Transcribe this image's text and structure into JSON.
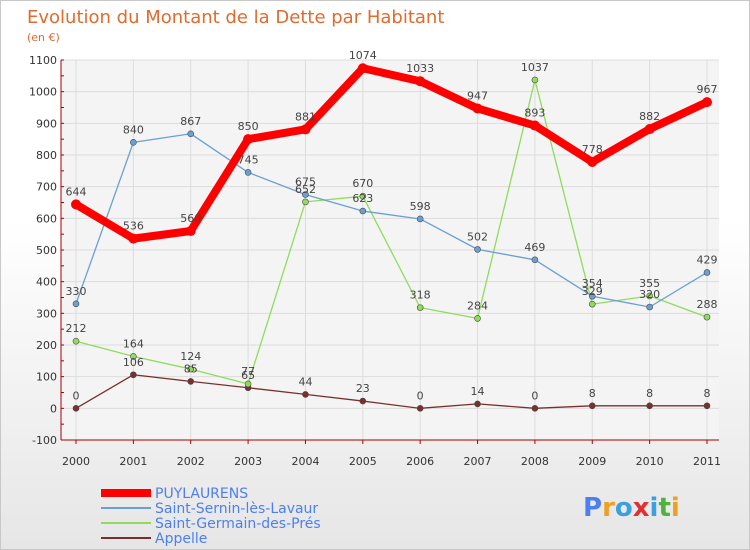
{
  "chart_data": {
    "type": "line",
    "title": "Evolution du Montant de la Dette par Habitant",
    "subtitle": "(en €)",
    "x": [
      "2000",
      "2001",
      "2002",
      "2003",
      "2004",
      "2005",
      "2006",
      "2007",
      "2008",
      "2009",
      "2010",
      "2011"
    ],
    "ylim": [
      -100,
      1100
    ],
    "yticks": [
      "-100",
      "0",
      "100",
      "200",
      "300",
      "400",
      "500",
      "600",
      "700",
      "800",
      "900",
      "1000",
      "1100"
    ],
    "grid": true,
    "legend_position": "bottom-left",
    "series": [
      {
        "name": "PUYLAURENS",
        "color": "#ff0000",
        "values": [
          644,
          536,
          560,
          850,
          881,
          1074,
          1033,
          947,
          893,
          778,
          882,
          967
        ]
      },
      {
        "name": "Saint-Sernin-lès-Lavaur",
        "color": "#6b9fd4",
        "values": [
          330,
          840,
          867,
          745,
          675,
          623,
          598,
          502,
          469,
          354,
          320,
          429
        ]
      },
      {
        "name": "Saint-Germain-des-Prés",
        "color": "#90dc5a",
        "values": [
          212,
          164,
          124,
          77,
          652,
          670,
          318,
          284,
          1037,
          329,
          355,
          288
        ]
      },
      {
        "name": "Appelle",
        "color": "#7a2f2f",
        "values": [
          0,
          106,
          85,
          65,
          44,
          23,
          0,
          14,
          0,
          8,
          8,
          8
        ]
      }
    ]
  },
  "logo": {
    "letters": [
      "P",
      "r",
      "o",
      "x",
      "i",
      "t",
      "i"
    ]
  }
}
